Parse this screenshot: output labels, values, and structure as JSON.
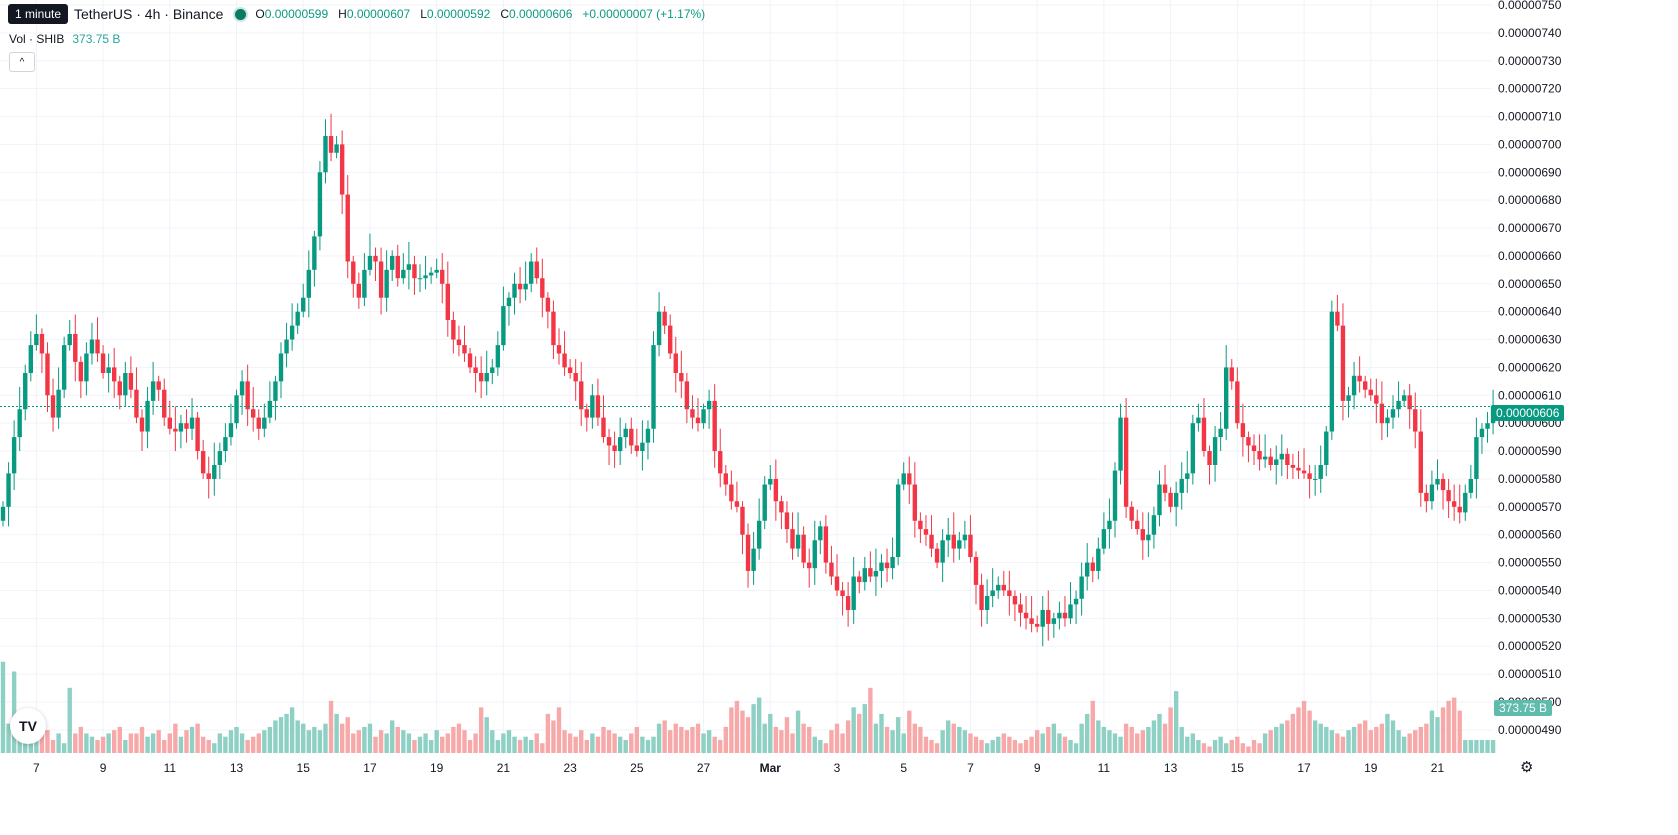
{
  "tooltip": "1 minute",
  "legend": {
    "symbol": "TetherUS · 4h · Binance",
    "open_label": "O",
    "open": "0.00000599",
    "high_label": "H",
    "high": "0.00000607",
    "low_label": "L",
    "low": "0.00000592",
    "close_label": "C",
    "close": "0.00000606",
    "change": "+0.00000007 (+1.17%)"
  },
  "volume_legend": {
    "label": "Vol · SHIB",
    "value": "373.75 B"
  },
  "price_badge": "0.00000606",
  "volume_badge": "373.75 B",
  "logo_text": "TV",
  "icons": [
    "chevron-up-icon",
    "settings-icon",
    "tradingview-logo"
  ],
  "colors": {
    "up": "#089981",
    "down": "#f23645",
    "up_volume": "#8fd0c5",
    "down_volume": "#f7a9a9",
    "last_price": "#089981"
  },
  "chart_data": {
    "type": "candlestick",
    "y_ticks": [
      "0.00000750",
      "0.00000740",
      "0.00000730",
      "0.00000720",
      "0.00000710",
      "0.00000700",
      "0.00000690",
      "0.00000680",
      "0.00000670",
      "0.00000660",
      "0.00000650",
      "0.00000640",
      "0.00000630",
      "0.00000620",
      "0.00000610",
      "0.00000600",
      "0.00000590",
      "0.00000580",
      "0.00000570",
      "0.00000560",
      "0.00000550",
      "0.00000540",
      "0.00000530",
      "0.00000520",
      "0.00000510",
      "0.00000500",
      "0.00000490"
    ],
    "ylim": [
      4.86e-06,
      7.5e-06
    ],
    "x_ticks": [
      {
        "label": "7",
        "bar": 6
      },
      {
        "label": "9",
        "bar": 18
      },
      {
        "label": "11",
        "bar": 30
      },
      {
        "label": "13",
        "bar": 42
      },
      {
        "label": "15",
        "bar": 54
      },
      {
        "label": "17",
        "bar": 66
      },
      {
        "label": "19",
        "bar": 78
      },
      {
        "label": "21",
        "bar": 90
      },
      {
        "label": "23",
        "bar": 102
      },
      {
        "label": "25",
        "bar": 114
      },
      {
        "label": "27",
        "bar": 126
      },
      {
        "label": "Mar",
        "bar": 138,
        "bold": true
      },
      {
        "label": "3",
        "bar": 150
      },
      {
        "label": "5",
        "bar": 162
      },
      {
        "label": "7",
        "bar": 174
      },
      {
        "label": "9",
        "bar": 186
      },
      {
        "label": "11",
        "bar": 198
      },
      {
        "label": "13",
        "bar": 210
      },
      {
        "label": "15",
        "bar": 222
      },
      {
        "label": "17",
        "bar": 234
      },
      {
        "label": "19",
        "bar": 246
      },
      {
        "label": "21",
        "bar": 258
      }
    ],
    "last_price": 6.06e-06,
    "closes": [
      5.7,
      5.82,
      5.95,
      6.05,
      6.18,
      6.28,
      6.32,
      6.25,
      6.1,
      6.02,
      6.12,
      6.28,
      6.32,
      6.22,
      6.15,
      6.25,
      6.3,
      6.25,
      6.18,
      6.2,
      6.15,
      6.1,
      6.18,
      6.12,
      6.02,
      5.97,
      6.08,
      6.15,
      6.12,
      6.02,
      5.98,
      5.97,
      6.0,
      5.98,
      6.02,
      5.9,
      5.82,
      5.8,
      5.85,
      5.9,
      5.95,
      6.0,
      6.1,
      6.15,
      6.05,
      6.02,
      5.98,
      6.02,
      6.08,
      6.15,
      6.25,
      6.3,
      6.35,
      6.4,
      6.45,
      6.55,
      6.67,
      6.9,
      7.03,
      6.97,
      7.0,
      6.82,
      6.58,
      6.5,
      6.45,
      6.55,
      6.6,
      6.58,
      6.45,
      6.55,
      6.6,
      6.52,
      6.55,
      6.57,
      6.52,
      6.52,
      6.53,
      6.54,
      6.55,
      6.5,
      6.37,
      6.3,
      6.28,
      6.25,
      6.2,
      6.18,
      6.15,
      6.18,
      6.2,
      6.28,
      6.42,
      6.45,
      6.5,
      6.48,
      6.5,
      6.58,
      6.52,
      6.45,
      6.4,
      6.28,
      6.25,
      6.2,
      6.18,
      6.15,
      6.05,
      6.02,
      6.1,
      6.02,
      5.95,
      5.92,
      5.9,
      5.95,
      5.98,
      5.92,
      5.9,
      5.93,
      5.98,
      6.28,
      6.4,
      6.35,
      6.25,
      6.18,
      6.15,
      6.05,
      6.02,
      6.0,
      6.05,
      6.08,
      5.9,
      5.82,
      5.78,
      5.72,
      5.7,
      5.6,
      5.47,
      5.55,
      5.65,
      5.78,
      5.8,
      5.72,
      5.68,
      5.62,
      5.55,
      5.6,
      5.5,
      5.48,
      5.58,
      5.63,
      5.5,
      5.45,
      5.4,
      5.38,
      5.33,
      5.45,
      5.43,
      5.48,
      5.45,
      5.47,
      5.5,
      5.48,
      5.52,
      5.78,
      5.82,
      5.78,
      5.65,
      5.62,
      5.6,
      5.55,
      5.5,
      5.58,
      5.6,
      5.55,
      5.58,
      5.6,
      5.52,
      5.42,
      5.33,
      5.38,
      5.4,
      5.42,
      5.4,
      5.38,
      5.35,
      5.32,
      5.3,
      5.28,
      5.27,
      5.33,
      5.28,
      5.3,
      5.32,
      5.3,
      5.35,
      5.37,
      5.45,
      5.5,
      5.47,
      5.55,
      5.62,
      5.65,
      5.83,
      6.02,
      5.7,
      5.65,
      5.62,
      5.58,
      5.6,
      5.67,
      5.78,
      5.75,
      5.7,
      5.75,
      5.8,
      5.82,
      6.0,
      6.02,
      5.9,
      5.85,
      5.95,
      5.98,
      6.2,
      6.15,
      6.0,
      5.95,
      5.92,
      5.9,
      5.87,
      5.88,
      5.85,
      5.87,
      5.89,
      5.85,
      5.84,
      5.83,
      5.82,
      5.8,
      5.8,
      5.85,
      5.97,
      6.4,
      6.35,
      6.08,
      6.1,
      6.17,
      6.15,
      6.12,
      6.1,
      6.07,
      6.0,
      6.02,
      6.05,
      6.08,
      6.1,
      6.05,
      5.97,
      5.75,
      5.72,
      5.78,
      5.8,
      5.76,
      5.72,
      5.7,
      5.68,
      5.75,
      5.8,
      5.95,
      5.98,
      6.0,
      6.06
    ],
    "volumes": [
      28,
      9,
      25,
      5,
      6,
      12,
      4,
      8,
      7,
      4,
      6,
      3,
      20,
      6,
      8,
      6,
      5,
      4,
      5,
      6,
      7,
      8,
      4,
      6,
      6,
      8,
      5,
      6,
      7,
      4,
      6,
      9,
      5,
      7,
      8,
      9,
      5,
      4,
      3,
      6,
      5,
      7,
      8,
      6,
      4,
      5,
      6,
      7,
      8,
      10,
      11,
      12,
      14,
      10,
      9,
      7,
      8,
      7,
      9,
      16,
      12,
      9,
      11,
      6,
      7,
      8,
      9,
      5,
      7,
      6,
      10,
      8,
      7,
      6,
      4,
      5,
      6,
      4,
      7,
      5,
      6,
      8,
      9,
      7,
      4,
      6,
      14,
      11,
      7,
      4,
      6,
      7,
      5,
      4,
      5,
      4,
      6,
      3,
      12,
      10,
      14,
      7,
      6,
      5,
      7,
      4,
      6,
      5,
      8,
      7,
      6,
      5,
      4,
      6,
      8,
      5,
      4,
      5,
      9,
      10,
      7,
      9,
      8,
      7,
      8,
      9,
      6,
      7,
      5,
      4,
      8,
      14,
      16,
      13,
      11,
      15,
      17,
      9,
      12,
      8,
      7,
      11,
      6,
      13,
      9,
      8,
      5,
      4,
      3,
      7,
      9,
      6,
      10,
      14,
      12,
      15,
      20,
      9,
      12,
      8,
      7,
      11,
      6,
      13,
      9,
      8,
      5,
      4,
      3,
      7,
      10,
      9,
      8,
      7,
      6,
      5,
      4,
      3,
      4,
      5,
      6,
      5,
      4,
      3,
      4,
      5,
      7,
      6,
      8,
      9,
      6,
      5,
      4,
      3,
      9,
      12,
      16,
      10,
      8,
      7,
      6,
      5,
      9,
      8,
      6,
      7,
      8,
      10,
      12,
      9,
      14,
      19,
      8,
      5,
      6,
      4,
      3,
      2,
      4,
      5,
      3,
      4,
      5,
      3,
      2,
      4,
      3,
      6,
      7,
      8,
      9,
      10,
      12,
      14,
      16,
      13,
      10,
      9,
      8,
      7,
      6,
      5,
      7,
      8,
      9,
      10,
      7,
      8,
      9,
      12,
      10,
      7,
      5,
      6,
      7,
      8,
      9,
      13,
      11,
      14,
      16,
      17,
      13
    ],
    "volume_max": 50
  }
}
